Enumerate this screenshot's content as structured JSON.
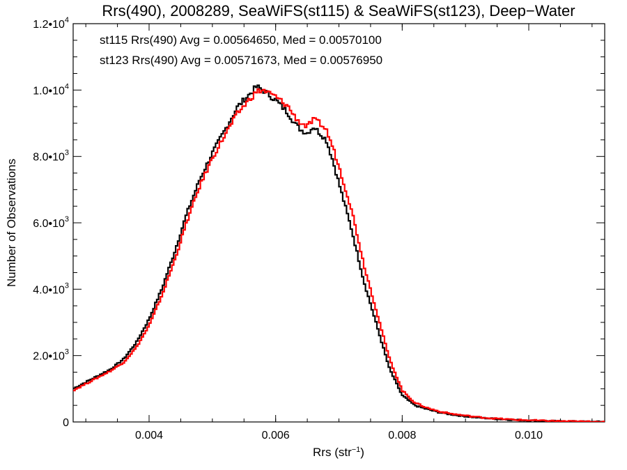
{
  "chart_data": {
    "type": "line",
    "title": "Rrs(490), 2008289, SeaWiFS(st115) & SeaWiFS(st123), Deep−Water",
    "xlabel_main": "Rrs (str",
    "xlabel_sup": "−1",
    "xlabel_end": ")",
    "ylabel": "Number of Observations",
    "xlim": [
      0.0028,
      0.0112
    ],
    "ylim": [
      0,
      12000
    ],
    "x_ticks": [
      0.004,
      0.006,
      0.008,
      0.01
    ],
    "x_tick_labels": [
      "0.004",
      "0.006",
      "0.008",
      "0.010"
    ],
    "y_ticks": [
      {
        "value": 0,
        "mant": "0",
        "exp": ""
      },
      {
        "value": 2000,
        "mant": "2.0•10",
        "exp": "3"
      },
      {
        "value": 4000,
        "mant": "4.0•10",
        "exp": "3"
      },
      {
        "value": 6000,
        "mant": "6.0•10",
        "exp": "3"
      },
      {
        "value": 8000,
        "mant": "8.0•10",
        "exp": "3"
      },
      {
        "value": 10000,
        "mant": "1.0•10",
        "exp": "4"
      },
      {
        "value": 12000,
        "mant": "1.2•10",
        "exp": "4"
      }
    ],
    "annotations": [
      {
        "text": "st115 Rrs(490) Avg = 0.00564650, Med = 0.00570100",
        "color": "#000000"
      },
      {
        "text": "st123 Rrs(490) Avg = 0.00571673, Med = 0.00576950",
        "color": "#ff0000"
      }
    ],
    "series": [
      {
        "color": "#000000",
        "x": [
          0.0028,
          0.003,
          0.0032,
          0.0034,
          0.0036,
          0.0038,
          0.004,
          0.0042,
          0.0044,
          0.0046,
          0.0048,
          0.005,
          0.0052,
          0.0054,
          0.0056,
          0.0057,
          0.0058,
          0.006,
          0.0062,
          0.0063,
          0.0064,
          0.0065,
          0.0066,
          0.0067,
          0.0068,
          0.0069,
          0.007,
          0.0072,
          0.0074,
          0.0076,
          0.0078,
          0.008,
          0.0082,
          0.0084,
          0.0086,
          0.0088,
          0.009,
          0.0092,
          0.0095,
          0.0098,
          0.0101,
          0.0104,
          0.0107,
          0.011,
          0.0112
        ],
        "y": [
          1000,
          1200,
          1400,
          1600,
          1900,
          2400,
          3100,
          4000,
          5100,
          6300,
          7300,
          8100,
          8800,
          9500,
          9900,
          10100,
          10000,
          9700,
          9300,
          9000,
          8800,
          8700,
          8900,
          8700,
          8500,
          7900,
          7200,
          5800,
          4200,
          2900,
          1600,
          800,
          500,
          380,
          280,
          220,
          170,
          130,
          90,
          60,
          40,
          25,
          15,
          8,
          5
        ]
      },
      {
        "color": "#ff0000",
        "x": [
          0.0028,
          0.003,
          0.0032,
          0.0034,
          0.0036,
          0.0038,
          0.004,
          0.0042,
          0.0044,
          0.0046,
          0.0048,
          0.005,
          0.0052,
          0.0054,
          0.0056,
          0.0057,
          0.0058,
          0.006,
          0.0062,
          0.0063,
          0.0064,
          0.0065,
          0.0066,
          0.0067,
          0.0068,
          0.0069,
          0.007,
          0.0072,
          0.0074,
          0.0076,
          0.0078,
          0.008,
          0.0082,
          0.0084,
          0.0086,
          0.0088,
          0.009,
          0.0092,
          0.0095,
          0.0098,
          0.0101,
          0.0104,
          0.0107,
          0.011,
          0.0112
        ],
        "y": [
          950,
          1150,
          1350,
          1550,
          1800,
          2250,
          2900,
          3800,
          4850,
          6050,
          7100,
          7950,
          8650,
          9300,
          9750,
          9950,
          10000,
          9800,
          9500,
          9200,
          9000,
          8900,
          9100,
          9000,
          8800,
          8300,
          7700,
          6400,
          4700,
          3300,
          1900,
          950,
          580,
          420,
          310,
          240,
          190,
          145,
          100,
          65,
          45,
          28,
          17,
          9,
          5
        ]
      }
    ]
  }
}
